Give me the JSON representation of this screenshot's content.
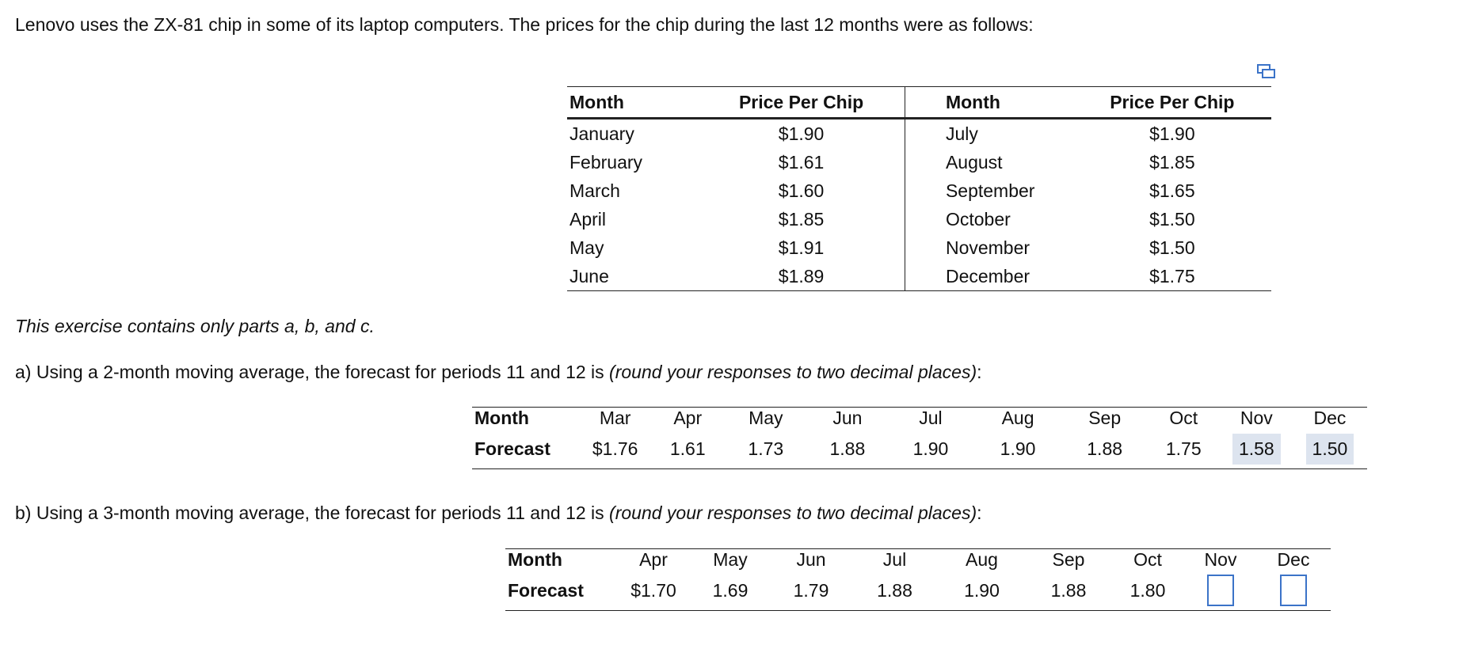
{
  "intro": "Lenovo uses the ZX-81 chip in some of its laptop computers. The prices for the chip during the last 12 months were as follows:",
  "price_table": {
    "headers": [
      "Month",
      "Price Per Chip",
      "Month",
      "Price Per Chip"
    ],
    "rows": [
      [
        "January",
        "$1.90",
        "July",
        "$1.90"
      ],
      [
        "February",
        "$1.61",
        "August",
        "$1.85"
      ],
      [
        "March",
        "$1.60",
        "September",
        "$1.65"
      ],
      [
        "April",
        "$1.85",
        "October",
        "$1.50"
      ],
      [
        "May",
        "$1.91",
        "November",
        "$1.50"
      ],
      [
        "June",
        "$1.89",
        "December",
        "$1.75"
      ]
    ]
  },
  "note": "This exercise contains only parts a, b, and c.",
  "part_a": {
    "prompt": "a) Using a 2-month moving average, the forecast for periods 11 and 12 is",
    "prompt_italic": "(round your responses to two decimal places)",
    "prompt_end": ":",
    "table": {
      "row_labels": [
        "Month",
        "Forecast"
      ],
      "months": [
        "Mar",
        "Apr",
        "May",
        "Jun",
        "Jul",
        "Aug",
        "Sep",
        "Oct",
        "Nov",
        "Dec"
      ],
      "forecasts": [
        "$1.76",
        "1.61",
        "1.73",
        "1.88",
        "1.90",
        "1.90",
        "1.88",
        "1.75",
        "1.58",
        "1.50"
      ]
    }
  },
  "part_b": {
    "prompt": "b) Using a 3-month moving average, the forecast for periods 11 and 12 is",
    "prompt_italic": "(round your responses to two decimal places)",
    "prompt_end": ":",
    "table": {
      "row_labels": [
        "Month",
        "Forecast"
      ],
      "months": [
        "Apr",
        "May",
        "Jun",
        "Jul",
        "Aug",
        "Sep",
        "Oct",
        "Nov",
        "Dec"
      ],
      "forecasts": [
        "$1.70",
        "1.69",
        "1.79",
        "1.88",
        "1.90",
        "1.88",
        "1.80",
        null,
        null
      ]
    }
  }
}
